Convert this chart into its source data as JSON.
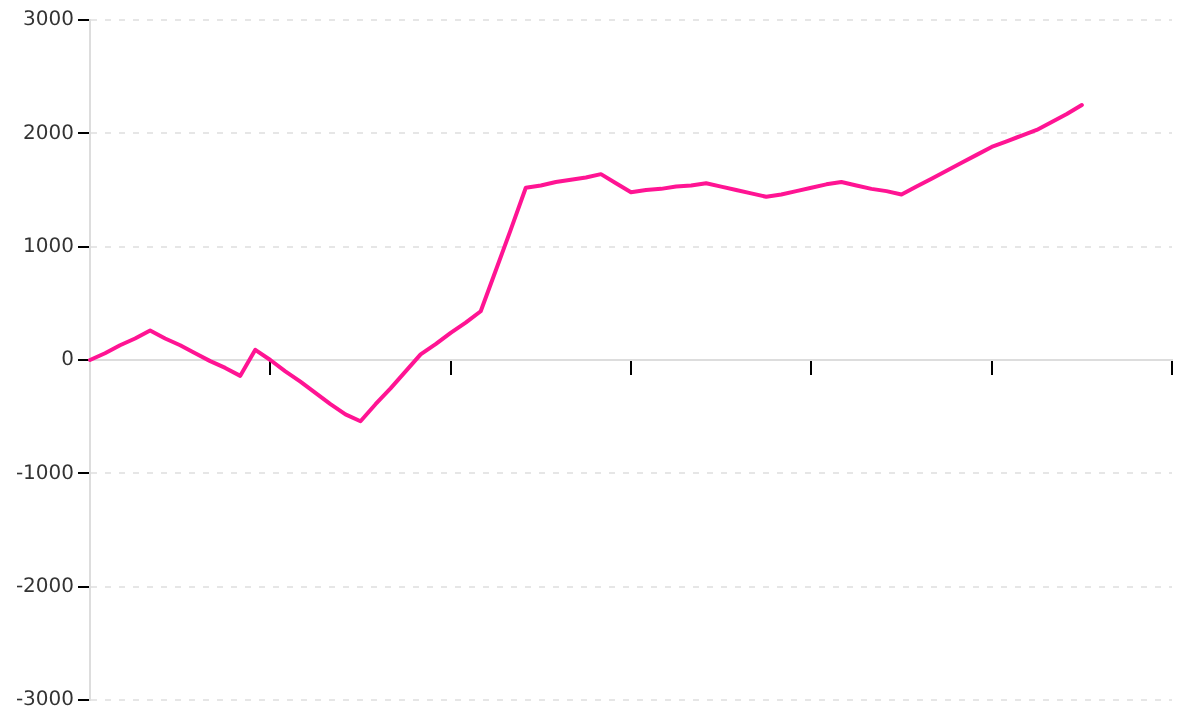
{
  "chart_data": {
    "type": "line",
    "categories": [
      null,
      null,
      null,
      null,
      null,
      null,
      null,
      null,
      null,
      null,
      null,
      null,
      null,
      null,
      null,
      null,
      null,
      null,
      null,
      null,
      null,
      null,
      null,
      null,
      null,
      null,
      null,
      null,
      null,
      null,
      null,
      null,
      null,
      null,
      null,
      null,
      null,
      null,
      null,
      null,
      null,
      null,
      null,
      null,
      null,
      null,
      null,
      null,
      null,
      null,
      null,
      null,
      null,
      null,
      null,
      null,
      null,
      null,
      null,
      null,
      null,
      null,
      null,
      null,
      null,
      null,
      null,
      null,
      null,
      null,
      null,
      null,
      null
    ],
    "series": [
      {
        "color": "#ff1493",
        "values": [
          0,
          60,
          130,
          190,
          260,
          190,
          130,
          60,
          -10,
          -70,
          -140,
          90,
          0,
          -100,
          -190,
          -290,
          -390,
          -480,
          -540,
          -390,
          -250,
          -100,
          50,
          140,
          240,
          330,
          430,
          790,
          1150,
          1520,
          1540,
          1570,
          1590,
          1610,
          1640,
          1560,
          1480,
          1500,
          1510,
          1530,
          1540,
          1560,
          1530,
          1500,
          1470,
          1440,
          1460,
          1490,
          1520,
          1550,
          1570,
          1540,
          1510,
          1490,
          1460,
          1530,
          1600,
          1670,
          1740,
          1810,
          1880,
          1930,
          1980,
          2030,
          2100,
          2170,
          2250,
          null,
          null,
          null,
          null,
          null,
          null
        ]
      }
    ],
    "ylim": [
      -3000,
      3000
    ],
    "yticks": [
      -3000,
      -2000,
      -1000,
      0,
      1000,
      2000,
      3000
    ],
    "grid": "y",
    "tick_labels": "y",
    "marker": "none",
    "line_style": "solid",
    "legend": false
  }
}
